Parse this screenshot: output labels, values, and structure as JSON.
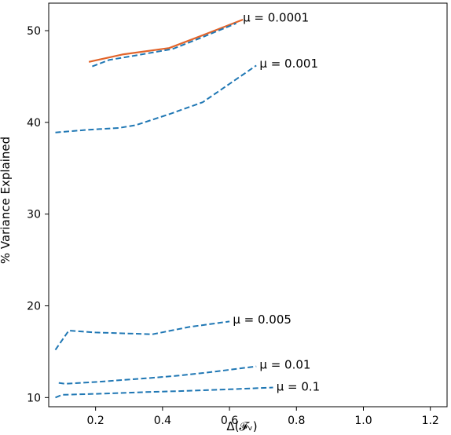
{
  "chart_data": {
    "type": "line",
    "title": "",
    "xlabel": "Δ(𝓕ᵥ)",
    "ylabel": "% Variance Explained",
    "xlim": [
      0.06,
      1.25
    ],
    "ylim": [
      9,
      53
    ],
    "xticks": [
      0.2,
      0.4,
      0.6,
      0.8,
      1.0,
      1.2
    ],
    "xtick_labels": [
      "0.2",
      "0.4",
      "0.6",
      "0.8",
      "1.0",
      "1.2"
    ],
    "yticks": [
      10,
      20,
      30,
      40,
      50
    ],
    "ytick_labels": [
      "10",
      "20",
      "30",
      "40",
      "50"
    ],
    "grid": false,
    "colors": {
      "dashed": "#1f77b4",
      "solid": "#e2642a",
      "axis": "#000000"
    },
    "series": [
      {
        "label": "μ = 0.0001",
        "style": "solid",
        "color": "#e2642a",
        "x": [
          0.18,
          0.28,
          0.42,
          0.52,
          0.64
        ],
        "y": [
          46.6,
          47.4,
          48.1,
          49.5,
          51.2
        ]
      },
      {
        "label": "μ = 0.0001",
        "style": "dashed",
        "color": "#1f77b4",
        "x": [
          0.19,
          0.24,
          0.32,
          0.43,
          0.52,
          0.62
        ],
        "y": [
          46.1,
          46.8,
          47.3,
          48.0,
          49.3,
          50.8
        ]
      },
      {
        "label": "μ = 0.001",
        "style": "dashed",
        "color": "#1f77b4",
        "x": [
          0.08,
          0.18,
          0.27,
          0.32,
          0.42,
          0.52,
          0.6,
          0.68
        ],
        "y": [
          38.9,
          39.2,
          39.4,
          39.7,
          40.9,
          42.2,
          44.2,
          46.2
        ]
      },
      {
        "label": "μ = 0.005",
        "style": "dashed",
        "color": "#1f77b4",
        "x": [
          0.08,
          0.12,
          0.2,
          0.37,
          0.48,
          0.6
        ],
        "y": [
          15.2,
          17.3,
          17.1,
          16.9,
          17.7,
          18.3
        ]
      },
      {
        "label": "μ = 0.01",
        "style": "dashed",
        "color": "#1f77b4",
        "x": [
          0.09,
          0.11,
          0.2,
          0.35,
          0.45,
          0.55,
          0.68
        ],
        "y": [
          11.6,
          11.5,
          11.7,
          12.1,
          12.4,
          12.8,
          13.4
        ]
      },
      {
        "label": "μ = 0.1",
        "style": "dashed",
        "color": "#1f77b4",
        "x": [
          0.08,
          0.1,
          0.2,
          0.35,
          0.45,
          0.6,
          0.73
        ],
        "y": [
          10.0,
          10.3,
          10.4,
          10.6,
          10.7,
          10.9,
          11.1
        ]
      }
    ],
    "annotations": [
      {
        "text": "μ = 0.0001",
        "x": 0.64,
        "y": 51.4
      },
      {
        "text": "μ = 0.001",
        "x": 0.69,
        "y": 46.4
      },
      {
        "text": "μ = 0.005",
        "x": 0.61,
        "y": 18.5
      },
      {
        "text": "μ = 0.01",
        "x": 0.69,
        "y": 13.6
      },
      {
        "text": "μ = 0.1",
        "x": 0.74,
        "y": 11.2
      }
    ]
  }
}
